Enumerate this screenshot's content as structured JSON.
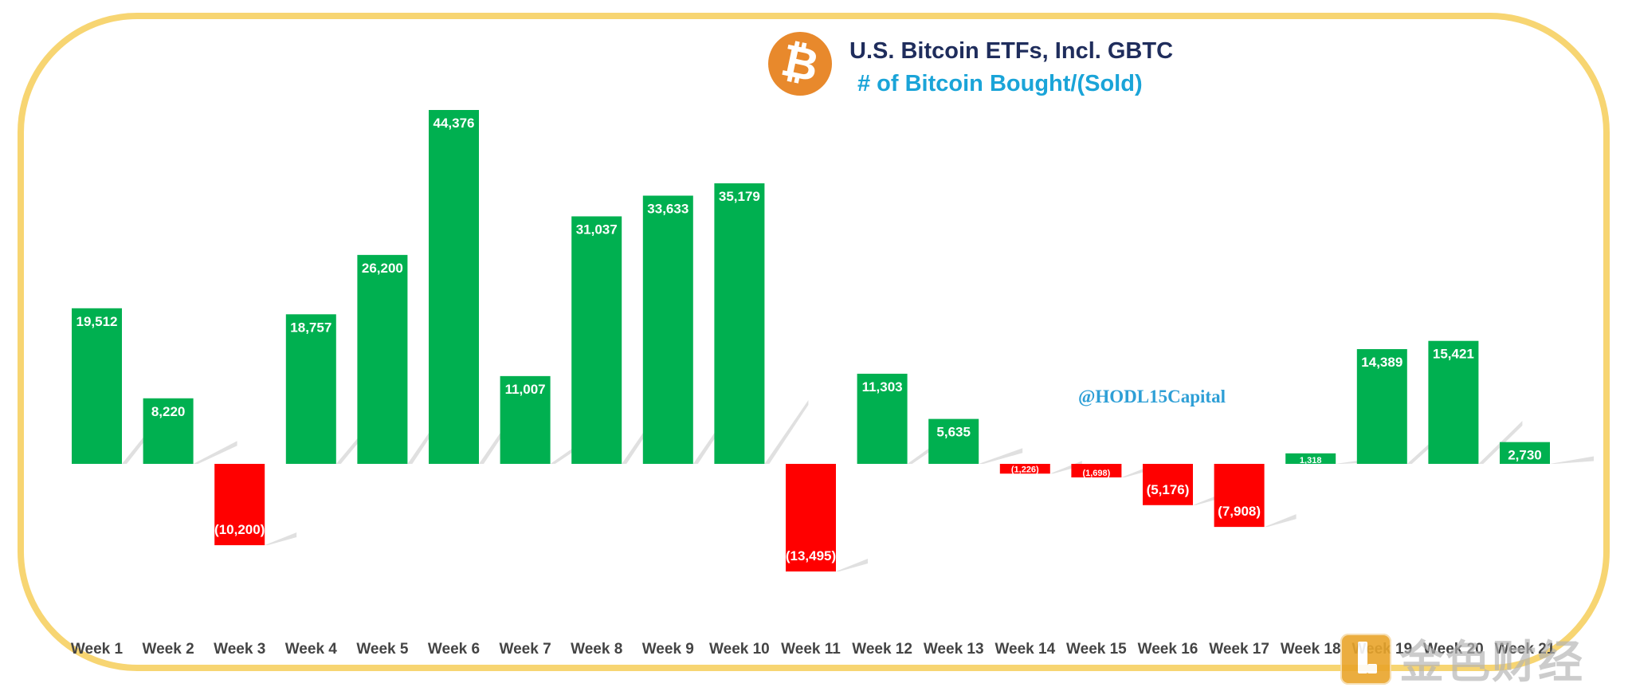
{
  "chart_data": {
    "type": "bar",
    "title": "U.S. Bitcoin ETFs, Incl. GBTC",
    "subtitle": "# of Bitcoin Bought/(Sold)",
    "categories": [
      "Week 1",
      "Week 2",
      "Week 3",
      "Week 4",
      "Week 5",
      "Week 6",
      "Week 7",
      "Week 8",
      "Week 9",
      "Week 10",
      "Week 11",
      "Week 12",
      "Week 13",
      "Week 14",
      "Week 15",
      "Week 16",
      "Week 17",
      "Week 18",
      "Week 19",
      "Week 20",
      "Week 21"
    ],
    "values": [
      19512,
      8220,
      -10200,
      18757,
      26200,
      44376,
      11007,
      31037,
      33633,
      35179,
      -13495,
      11303,
      5635,
      -1226,
      -1698,
      -5176,
      -7908,
      1318,
      14389,
      15421,
      2730
    ],
    "data_labels": [
      "19,512",
      "8,220",
      "(10,200)",
      "18,757",
      "26,200",
      "44,376",
      "11,007",
      "31,037",
      "33,633",
      "35,179",
      "(13,495)",
      "11,303",
      "5,635",
      "(1,226)",
      "(1,698)",
      "(5,176)",
      "(7,908)",
      "1,318",
      "14,389",
      "15,421",
      "2,730"
    ],
    "colors": {
      "positive": "#00b050",
      "negative": "#ff0000"
    },
    "ylim": [
      -15000,
      45000
    ],
    "grid": false,
    "legend": "none",
    "watermark": "@HODL15Capital"
  },
  "branding": {
    "logo_icon": "bitcoin-logo-icon",
    "corner_icon": "jinse-logo-icon",
    "corner_text": "金色财经"
  }
}
